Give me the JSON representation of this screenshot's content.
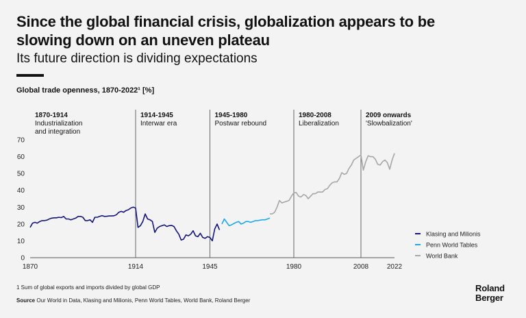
{
  "header": {
    "title": "Since the global financial crisis, globalization appears to be slowing down on an uneven plateau",
    "subtitle": "Its future direction is dividing expectations",
    "chart_label": "Global trade openness, 1870-2022¹ [%]"
  },
  "footer": {
    "note": "1 Sum of global exports and imports divided by global GDP",
    "source_label": "Source",
    "source_text": "Our World in Data, Klasing and Milionis, Penn World Tables, World Bank, Roland Berger"
  },
  "logo": {
    "line1": "Roland",
    "line2": "Berger"
  },
  "colors": {
    "background": "#f3f3f4",
    "klasing": "#13147a",
    "penn": "#1ea7e8",
    "worldbank": "#a6a6a6",
    "axis": "#555555",
    "grid_line": "#666666"
  },
  "chart_data": {
    "type": "line",
    "title": "Global trade openness, 1870-2022¹ [%]",
    "xlabel": "",
    "ylabel": "",
    "xlim": [
      1870,
      2022
    ],
    "ylim": [
      0,
      70
    ],
    "yticks": [
      0,
      10,
      20,
      30,
      40,
      50,
      60,
      70
    ],
    "xticks": [
      1870,
      1914,
      1945,
      1980,
      2008,
      2022
    ],
    "grid": false,
    "legend_position": "bottom-right",
    "eras": [
      {
        "start": 1870,
        "years": "1870-1914",
        "label": "Industrialization and integration",
        "label_lines": [
          "Industrialization",
          "and integration"
        ]
      },
      {
        "start": 1914,
        "years": "1914-1945",
        "label": "Interwar era",
        "label_lines": [
          "Interwar era"
        ]
      },
      {
        "start": 1945,
        "years": "1945-1980",
        "label": "Postwar rebound",
        "label_lines": [
          "Postwar rebound"
        ]
      },
      {
        "start": 1980,
        "years": "1980-2008",
        "label": "Liberalization",
        "label_lines": [
          "Liberalization"
        ]
      },
      {
        "start": 2008,
        "years": "2009 onwards",
        "label": "'Slowbalization'",
        "label_lines": [
          "'Slowbalization'"
        ]
      }
    ],
    "series": [
      {
        "name": "Klasing and Milionis",
        "color": "#13147a",
        "x": [
          1870,
          1871,
          1872,
          1873,
          1874,
          1875,
          1876,
          1877,
          1878,
          1879,
          1880,
          1881,
          1882,
          1883,
          1884,
          1885,
          1886,
          1887,
          1888,
          1889,
          1890,
          1891,
          1892,
          1893,
          1894,
          1895,
          1896,
          1897,
          1898,
          1899,
          1900,
          1901,
          1902,
          1903,
          1904,
          1905,
          1906,
          1907,
          1908,
          1909,
          1910,
          1911,
          1912,
          1913,
          1914,
          1915,
          1916,
          1917,
          1918,
          1919,
          1920,
          1921,
          1922,
          1923,
          1924,
          1925,
          1926,
          1927,
          1928,
          1929,
          1930,
          1931,
          1932,
          1933,
          1934,
          1935,
          1936,
          1937,
          1938,
          1939,
          1940,
          1941,
          1942,
          1943,
          1944,
          1945,
          1946,
          1947,
          1948,
          1949
        ],
        "y": [
          18,
          20.5,
          21,
          20.5,
          21.5,
          22,
          22,
          22.3,
          23,
          23.5,
          23.7,
          23.7,
          24,
          23.8,
          24.5,
          23,
          23,
          22.5,
          23,
          23.5,
          24.5,
          24.5,
          24,
          22,
          22,
          22.5,
          21,
          24,
          24,
          24.5,
          25,
          24.5,
          24.6,
          24.8,
          24.8,
          24.9,
          25.5,
          27,
          27.5,
          27,
          28,
          28.5,
          29.5,
          30,
          29.5,
          18,
          19,
          21.5,
          26,
          23,
          22.5,
          21.5,
          15,
          17.5,
          18.5,
          19,
          19.5,
          18.5,
          19,
          19.2,
          18.5,
          16,
          14,
          10.5,
          11,
          13.5,
          13,
          14,
          16,
          13,
          12.5,
          14.5,
          12,
          11.5,
          12.5,
          12,
          10,
          17,
          20,
          16.5
        ]
      },
      {
        "name": "Penn World Tables",
        "color": "#1ea7e8",
        "x": [
          1950,
          1951,
          1952,
          1953,
          1954,
          1955,
          1956,
          1957,
          1958,
          1959,
          1960,
          1961,
          1962,
          1963,
          1964,
          1965,
          1966,
          1967,
          1968,
          1969,
          1970
        ],
        "y": [
          20,
          23,
          21,
          19,
          19.5,
          20.3,
          21,
          21.5,
          20,
          20.5,
          21.5,
          21.5,
          21,
          21.5,
          22,
          22,
          22.3,
          22.5,
          22.5,
          23,
          23.5
        ]
      },
      {
        "name": "World Bank",
        "color": "#a6a6a6",
        "x": [
          1970,
          1971,
          1972,
          1973,
          1974,
          1975,
          1976,
          1977,
          1978,
          1979,
          1980,
          1981,
          1982,
          1983,
          1984,
          1985,
          1986,
          1987,
          1988,
          1989,
          1990,
          1991,
          1992,
          1993,
          1994,
          1995,
          1996,
          1997,
          1998,
          1999,
          2000,
          2001,
          2002,
          2003,
          2004,
          2005,
          2006,
          2007,
          2008,
          2009,
          2010,
          2011,
          2012,
          2013,
          2014,
          2015,
          2016,
          2017,
          2018,
          2019,
          2020,
          2021,
          2022
        ],
        "y": [
          26,
          26,
          27,
          30,
          34,
          32.5,
          33,
          33.5,
          34,
          36.5,
          38.5,
          38.7,
          36.5,
          36,
          37.5,
          37,
          35,
          36.5,
          38,
          38,
          39,
          39,
          39,
          40.5,
          41,
          43,
          44.5,
          45,
          45,
          47,
          50.5,
          49.5,
          50,
          53,
          55,
          58,
          59,
          60,
          61,
          52,
          57,
          60.5,
          60,
          60,
          58.5,
          55.5,
          55,
          57,
          58,
          56.5,
          52.5,
          58,
          62
        ]
      }
    ]
  }
}
